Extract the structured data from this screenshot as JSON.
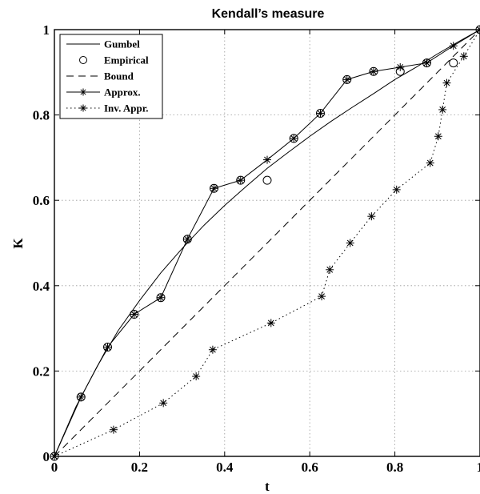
{
  "chart_data": {
    "type": "line",
    "title": "Kendall’s measure",
    "xlabel": "t",
    "ylabel": "K",
    "xlim": [
      0,
      1
    ],
    "ylim": [
      0,
      1
    ],
    "xticks": [
      "0",
      "0.2",
      "0.4",
      "0.6",
      "0.8",
      "1"
    ],
    "yticks": [
      "0",
      "0.2",
      "0.4",
      "0.6",
      "0.8",
      "1"
    ],
    "grid": true,
    "legend_position": "top-left",
    "series": [
      {
        "name": "Gumbel",
        "style": "solid",
        "marker": "none",
        "x": [
          0,
          0.05,
          0.1,
          0.15,
          0.2,
          0.25,
          0.3,
          0.35,
          0.4,
          0.45,
          0.5,
          0.55,
          0.6,
          0.65,
          0.7,
          0.75,
          0.8,
          0.85,
          0.9,
          0.95,
          1.0
        ],
        "y": [
          0,
          0.115,
          0.21,
          0.295,
          0.365,
          0.43,
          0.487,
          0.54,
          0.588,
          0.632,
          0.675,
          0.713,
          0.75,
          0.785,
          0.818,
          0.85,
          0.883,
          0.912,
          0.943,
          0.972,
          1.0
        ]
      },
      {
        "name": "Empirical",
        "style": "none",
        "marker": "circle",
        "x": [
          0,
          0.0625,
          0.125,
          0.1875,
          0.25,
          0.3125,
          0.375,
          0.4375,
          0.5,
          0.5625,
          0.625,
          0.6875,
          0.75,
          0.8125,
          0.875,
          0.9375,
          1.0
        ],
        "y": [
          0,
          0.139,
          0.256,
          0.333,
          0.372,
          0.509,
          0.628,
          0.647,
          0.647,
          0.745,
          0.804,
          0.883,
          0.902,
          0.902,
          0.922,
          0.922,
          1.0
        ]
      },
      {
        "name": "Bound",
        "style": "dashed",
        "marker": "none",
        "x": [
          0,
          1
        ],
        "y": [
          0,
          1
        ]
      },
      {
        "name": "Approx.",
        "style": "solid",
        "marker": "star",
        "x": [
          0,
          0.0625,
          0.125,
          0.1875,
          0.25,
          0.3125,
          0.375,
          0.4375,
          0.5,
          0.5625,
          0.625,
          0.6875,
          0.75,
          0.8125,
          0.875,
          0.9375,
          1.0
        ],
        "y": [
          0,
          0.139,
          0.256,
          0.333,
          0.372,
          0.509,
          0.628,
          0.647,
          0.695,
          0.745,
          0.804,
          0.883,
          0.902,
          0.912,
          0.922,
          0.962,
          1.0
        ]
      },
      {
        "name": "Inv. Appr.",
        "style": "dotted",
        "marker": "star",
        "x": [
          0,
          0.139,
          0.256,
          0.333,
          0.372,
          0.509,
          0.628,
          0.647,
          0.695,
          0.745,
          0.804,
          0.883,
          0.902,
          0.912,
          0.922,
          0.962,
          1.0
        ],
        "y": [
          0,
          0.0625,
          0.125,
          0.1875,
          0.25,
          0.3125,
          0.375,
          0.4375,
          0.5,
          0.5625,
          0.625,
          0.6875,
          0.75,
          0.8125,
          0.875,
          0.9375,
          1.0
        ]
      }
    ]
  }
}
